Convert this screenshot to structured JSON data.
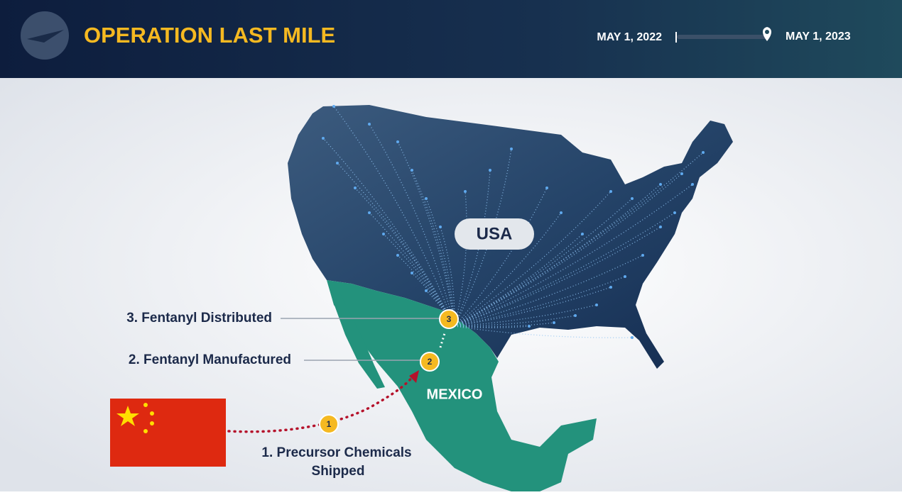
{
  "header": {
    "title": "OPERATION LAST MILE",
    "start_date": "MAY 1, 2022",
    "end_date": "MAY 1, 2023"
  },
  "map": {
    "usa_label": "USA",
    "mexico_label": "MEXICO"
  },
  "steps": [
    {
      "number": 1,
      "label_lines": [
        "1. Precursor Chemicals",
        "Shipped"
      ]
    },
    {
      "number": 2,
      "label_lines": [
        "2. Fentanyl Manufactured"
      ]
    },
    {
      "number": 3,
      "label_lines": [
        "3. Fentanyl Distributed"
      ]
    }
  ]
}
